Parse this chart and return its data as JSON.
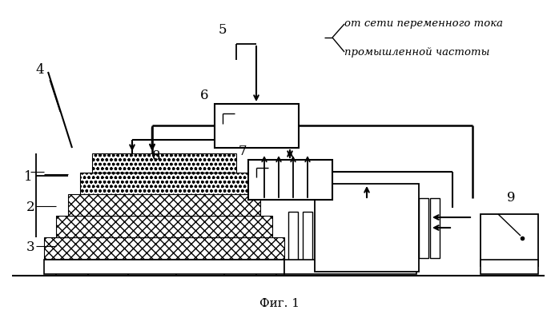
{
  "title": "Фиг. 1",
  "annotation_line1": "от сети переменного тока",
  "annotation_line2": "промышленной частоты",
  "bg_color": "#ffffff"
}
